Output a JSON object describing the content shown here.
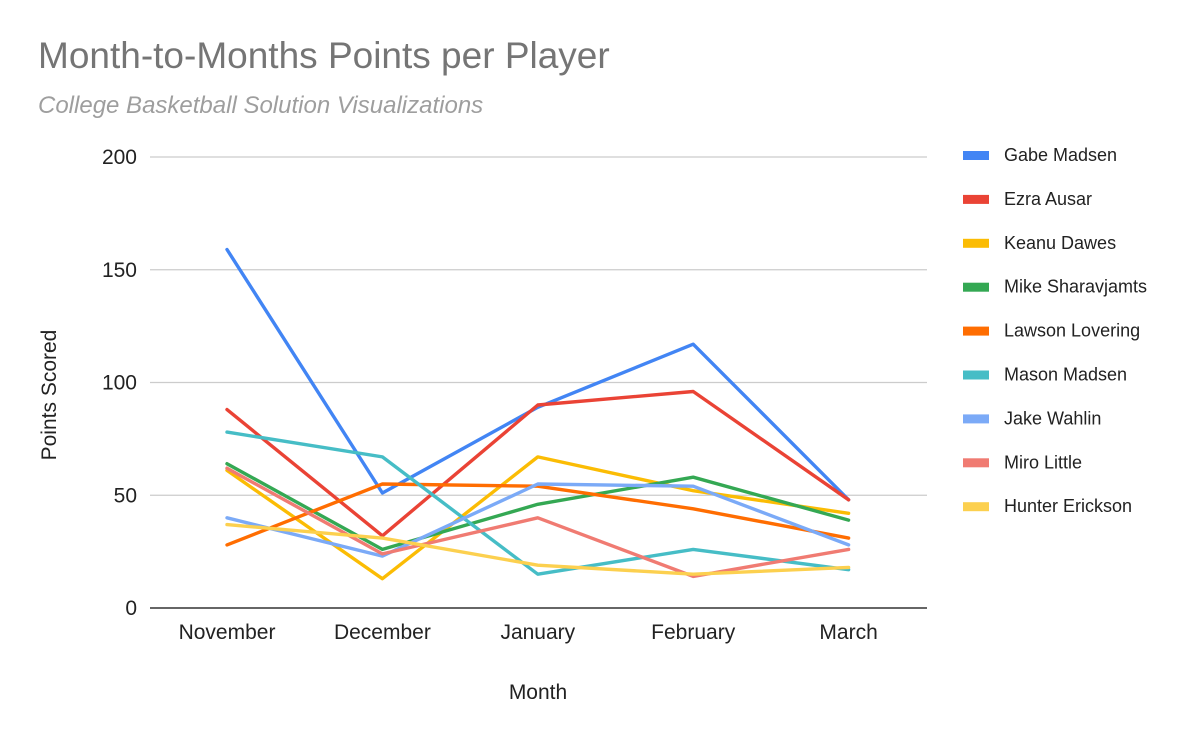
{
  "chart_data": {
    "type": "line",
    "title": "Month-to-Months Points per Player",
    "subtitle": "College Basketball Solution Visualizations",
    "xlabel": "Month",
    "ylabel": "Points Scored",
    "categories": [
      "November",
      "December",
      "January",
      "February",
      "March"
    ],
    "ylim": [
      0,
      200
    ],
    "yticks": [
      0,
      50,
      100,
      150,
      200
    ],
    "grid": true,
    "legend_position": "right",
    "series": [
      {
        "name": "Gabe Madsen",
        "color": "#4285f4",
        "values": [
          159,
          51,
          89,
          117,
          48
        ]
      },
      {
        "name": "Ezra Ausar",
        "color": "#ea4335",
        "values": [
          88,
          32,
          90,
          96,
          48
        ]
      },
      {
        "name": "Keanu Dawes",
        "color": "#fbbc04",
        "values": [
          61,
          13,
          67,
          52,
          42
        ]
      },
      {
        "name": "Mike Sharavjamts",
        "color": "#34a853",
        "values": [
          64,
          26,
          46,
          58,
          39
        ]
      },
      {
        "name": "Lawson Lovering",
        "color": "#ff6d01",
        "values": [
          28,
          55,
          54,
          44,
          31
        ]
      },
      {
        "name": "Mason Madsen",
        "color": "#46bdc6",
        "values": [
          78,
          67,
          15,
          26,
          17
        ]
      },
      {
        "name": "Jake Wahlin",
        "color": "#7baaf7",
        "values": [
          40,
          23,
          55,
          54,
          28
        ]
      },
      {
        "name": "Miro Little",
        "color": "#f07b72",
        "values": [
          62,
          24,
          40,
          14,
          26
        ]
      },
      {
        "name": "Hunter Erickson",
        "color": "#fcd04f",
        "values": [
          37,
          31,
          19,
          15,
          18
        ]
      }
    ]
  }
}
